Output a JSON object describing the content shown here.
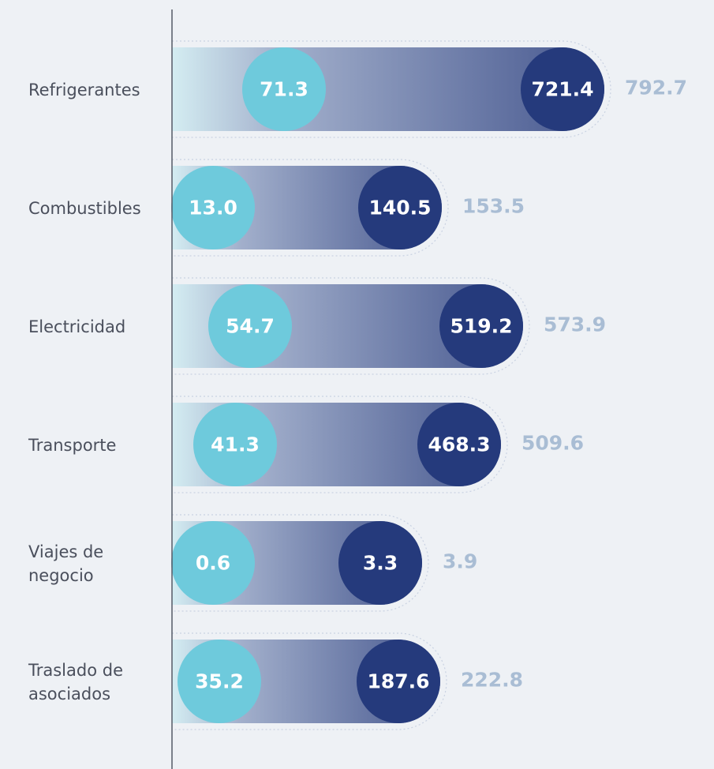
{
  "rows": [
    {
      "label": [
        "Refrigerantes"
      ],
      "first": "71.3",
      "second": "721.4",
      "total": "792.7"
    },
    {
      "label": [
        "Combustibles"
      ],
      "first": "13.0",
      "second": "140.5",
      "total": "153.5"
    },
    {
      "label": [
        "Electricidad"
      ],
      "first": "54.7",
      "second": "519.2",
      "total": "573.9"
    },
    {
      "label": [
        "Transporte"
      ],
      "first": "41.3",
      "second": "468.3",
      "total": "509.6"
    },
    {
      "label": [
        "Viajes de",
        "negocio"
      ],
      "first": "0.6",
      "second": "3.3",
      "total": "3.9"
    },
    {
      "label": [
        "Traslado de",
        "asociados"
      ],
      "first": "35.2",
      "second": "187.6",
      "total": "222.8"
    }
  ]
}
